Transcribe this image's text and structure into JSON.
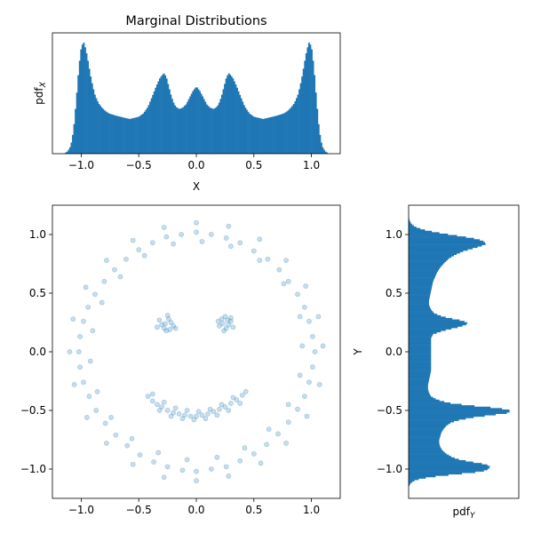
{
  "chart_data": [
    {
      "type": "histogram",
      "title": "Marginal Distributions",
      "xlabel": "X",
      "ylabel": "pdf",
      "ylabel_sub": "X",
      "xlim": [
        -1.25,
        1.25
      ],
      "ylim": [
        0,
        1.08
      ],
      "xticks": [
        -1.0,
        -0.5,
        0.0,
        0.5,
        1.0
      ],
      "xtick_labels": [
        "−1.0",
        "−0.5",
        "0.0",
        "0.5",
        "1.0"
      ],
      "yticks_hidden": true,
      "color": "#1f77b4",
      "x": [
        -1.15,
        -1.12,
        -1.1,
        -1.08,
        -1.06,
        -1.04,
        -1.02,
        -1.0,
        -0.98,
        -0.96,
        -0.94,
        -0.92,
        -0.9,
        -0.88,
        -0.85,
        -0.82,
        -0.79,
        -0.76,
        -0.73,
        -0.7,
        -0.66,
        -0.62,
        -0.58,
        -0.54,
        -0.5,
        -0.46,
        -0.42,
        -0.38,
        -0.35,
        -0.32,
        -0.3,
        -0.28,
        -0.26,
        -0.24,
        -0.22,
        -0.2,
        -0.18,
        -0.15,
        -0.12,
        -0.09,
        -0.06,
        -0.03,
        0.0,
        0.03,
        0.06,
        0.09,
        0.12,
        0.15,
        0.18,
        0.2,
        0.22,
        0.24,
        0.26,
        0.28,
        0.3,
        0.32,
        0.35,
        0.38,
        0.42,
        0.46,
        0.5,
        0.54,
        0.58,
        0.62,
        0.66,
        0.7,
        0.73,
        0.76,
        0.79,
        0.82,
        0.85,
        0.88,
        0.9,
        0.92,
        0.94,
        0.96,
        0.98,
        1.0,
        1.02,
        1.04,
        1.06,
        1.08,
        1.1,
        1.12,
        1.15
      ],
      "density": [
        0.0,
        0.02,
        0.05,
        0.12,
        0.28,
        0.52,
        0.78,
        0.95,
        1.0,
        0.93,
        0.82,
        0.7,
        0.6,
        0.52,
        0.45,
        0.41,
        0.38,
        0.36,
        0.35,
        0.34,
        0.33,
        0.32,
        0.31,
        0.32,
        0.33,
        0.36,
        0.42,
        0.52,
        0.6,
        0.67,
        0.7,
        0.72,
        0.68,
        0.6,
        0.52,
        0.46,
        0.42,
        0.4,
        0.41,
        0.44,
        0.5,
        0.56,
        0.6,
        0.56,
        0.5,
        0.44,
        0.41,
        0.4,
        0.42,
        0.46,
        0.52,
        0.6,
        0.68,
        0.72,
        0.7,
        0.67,
        0.6,
        0.52,
        0.42,
        0.36,
        0.33,
        0.32,
        0.31,
        0.32,
        0.33,
        0.34,
        0.35,
        0.36,
        0.38,
        0.41,
        0.45,
        0.52,
        0.6,
        0.7,
        0.82,
        0.93,
        1.0,
        0.95,
        0.78,
        0.52,
        0.28,
        0.12,
        0.05,
        0.02,
        0.0
      ]
    },
    {
      "type": "scatter",
      "xlim": [
        -1.25,
        1.25
      ],
      "ylim": [
        -1.25,
        1.25
      ],
      "xticks": [
        -1.0,
        -0.5,
        0.0,
        0.5,
        1.0
      ],
      "xtick_labels": [
        "−1.0",
        "−0.5",
        "0.0",
        "0.5",
        "1.0"
      ],
      "yticks": [
        -1.0,
        -0.5,
        0.0,
        0.5,
        1.0
      ],
      "ytick_labels": [
        "−1.0",
        "−0.5",
        "0.0",
        "0.5",
        "1.0"
      ],
      "color": "#1f77b4",
      "alpha": 0.25,
      "points": [
        [
          1.03,
          0.0
        ],
        [
          1.01,
          0.13
        ],
        [
          0.98,
          0.26
        ],
        [
          0.94,
          0.38
        ],
        [
          0.88,
          0.49
        ],
        [
          0.8,
          0.6
        ],
        [
          0.72,
          0.7
        ],
        [
          0.62,
          0.79
        ],
        [
          0.5,
          0.86
        ],
        [
          0.38,
          0.93
        ],
        [
          0.26,
          0.97
        ],
        [
          0.13,
          1.0
        ],
        [
          0.0,
          1.02
        ],
        [
          -0.13,
          1.0
        ],
        [
          -0.26,
          0.98
        ],
        [
          -0.38,
          0.93
        ],
        [
          -0.5,
          0.87
        ],
        [
          -0.61,
          0.79
        ],
        [
          -0.71,
          0.7
        ],
        [
          -0.8,
          0.6
        ],
        [
          -0.88,
          0.49
        ],
        [
          -0.94,
          0.38
        ],
        [
          -0.98,
          0.26
        ],
        [
          -1.01,
          0.13
        ],
        [
          -1.02,
          0.0
        ],
        [
          -1.01,
          -0.13
        ],
        [
          -0.98,
          -0.26
        ],
        [
          -0.93,
          -0.38
        ],
        [
          -0.87,
          -0.5
        ],
        [
          -0.79,
          -0.61
        ],
        [
          -0.7,
          -0.71
        ],
        [
          -0.6,
          -0.8
        ],
        [
          -0.49,
          -0.88
        ],
        [
          -0.37,
          -0.94
        ],
        [
          -0.25,
          -0.98
        ],
        [
          -0.12,
          -1.01
        ],
        [
          0.0,
          -1.02
        ],
        [
          0.13,
          -1.0
        ],
        [
          0.26,
          -0.98
        ],
        [
          0.38,
          -0.93
        ],
        [
          0.5,
          -0.87
        ],
        [
          0.61,
          -0.79
        ],
        [
          0.71,
          -0.7
        ],
        [
          0.8,
          -0.6
        ],
        [
          0.88,
          -0.49
        ],
        [
          0.94,
          -0.38
        ],
        [
          0.98,
          -0.26
        ],
        [
          1.01,
          -0.13
        ],
        [
          0.92,
          0.05
        ],
        [
          0.9,
          0.3
        ],
        [
          0.76,
          0.58
        ],
        [
          0.55,
          0.78
        ],
        [
          0.3,
          0.9
        ],
        [
          0.05,
          0.94
        ],
        [
          -0.2,
          0.92
        ],
        [
          -0.45,
          0.82
        ],
        [
          -0.66,
          0.64
        ],
        [
          -0.82,
          0.42
        ],
        [
          -0.9,
          0.18
        ],
        [
          -0.92,
          -0.08
        ],
        [
          -0.86,
          -0.34
        ],
        [
          -0.74,
          -0.56
        ],
        [
          -0.56,
          -0.74
        ],
        [
          -0.33,
          -0.86
        ],
        [
          -0.08,
          -0.92
        ],
        [
          0.18,
          -0.9
        ],
        [
          0.42,
          -0.82
        ],
        [
          0.63,
          -0.66
        ],
        [
          0.8,
          -0.45
        ],
        [
          0.9,
          -0.2
        ],
        [
          1.1,
          0.05
        ],
        [
          1.06,
          0.3
        ],
        [
          0.95,
          0.56
        ],
        [
          0.78,
          0.78
        ],
        [
          0.55,
          0.96
        ],
        [
          0.28,
          1.07
        ],
        [
          0.0,
          1.1
        ],
        [
          -0.28,
          1.06
        ],
        [
          -0.55,
          0.95
        ],
        [
          -0.78,
          0.78
        ],
        [
          -0.96,
          0.55
        ],
        [
          -1.07,
          0.28
        ],
        [
          -1.1,
          0.0
        ],
        [
          -1.06,
          -0.28
        ],
        [
          -0.95,
          -0.56
        ],
        [
          -0.78,
          -0.78
        ],
        [
          -0.55,
          -0.96
        ],
        [
          -0.28,
          -1.07
        ],
        [
          0.0,
          -1.1
        ],
        [
          0.28,
          -1.06
        ],
        [
          0.56,
          -0.95
        ],
        [
          0.78,
          -0.78
        ],
        [
          0.96,
          -0.55
        ],
        [
          1.07,
          -0.28
        ],
        [
          -0.32,
          0.27
        ],
        [
          -0.28,
          0.2
        ],
        [
          -0.24,
          0.28
        ],
        [
          -0.2,
          0.22
        ],
        [
          -0.26,
          0.18
        ],
        [
          -0.3,
          0.23
        ],
        [
          -0.22,
          0.25
        ],
        [
          -0.25,
          0.31
        ],
        [
          -0.34,
          0.21
        ],
        [
          -0.18,
          0.2
        ],
        [
          -0.27,
          0.24
        ],
        [
          -0.23,
          0.19
        ],
        [
          0.22,
          0.28
        ],
        [
          0.26,
          0.2
        ],
        [
          0.3,
          0.26
        ],
        [
          0.25,
          0.3
        ],
        [
          0.2,
          0.22
        ],
        [
          0.28,
          0.23
        ],
        [
          0.32,
          0.21
        ],
        [
          0.24,
          0.18
        ],
        [
          0.19,
          0.26
        ],
        [
          0.27,
          0.27
        ],
        [
          0.23,
          0.24
        ],
        [
          0.3,
          0.29
        ],
        [
          -0.42,
          -0.38
        ],
        [
          -0.38,
          -0.42
        ],
        [
          -0.34,
          -0.45
        ],
        [
          -0.3,
          -0.47
        ],
        [
          -0.25,
          -0.5
        ],
        [
          -0.2,
          -0.52
        ],
        [
          -0.15,
          -0.53
        ],
        [
          -0.1,
          -0.54
        ],
        [
          -0.05,
          -0.55
        ],
        [
          0.0,
          -0.55
        ],
        [
          0.05,
          -0.54
        ],
        [
          0.1,
          -0.53
        ],
        [
          0.15,
          -0.51
        ],
        [
          0.2,
          -0.49
        ],
        [
          0.25,
          -0.47
        ],
        [
          0.3,
          -0.44
        ],
        [
          0.35,
          -0.41
        ],
        [
          0.4,
          -0.37
        ],
        [
          0.43,
          -0.34
        ],
        [
          -0.38,
          -0.36
        ],
        [
          -0.28,
          -0.43
        ],
        [
          -0.18,
          -0.48
        ],
        [
          -0.08,
          -0.5
        ],
        [
          0.02,
          -0.51
        ],
        [
          0.12,
          -0.49
        ],
        [
          0.22,
          -0.45
        ],
        [
          0.32,
          -0.39
        ],
        [
          -0.32,
          -0.5
        ],
        [
          -0.22,
          -0.55
        ],
        [
          -0.12,
          -0.57
        ],
        [
          -0.02,
          -0.58
        ],
        [
          0.08,
          -0.57
        ],
        [
          0.18,
          -0.54
        ],
        [
          0.28,
          -0.5
        ],
        [
          0.38,
          -0.44
        ]
      ]
    },
    {
      "type": "histogram",
      "orientation": "horizontal",
      "xlabel": "pdf",
      "xlabel_sub": "Y",
      "ylabel": "Y",
      "xlim": [
        0,
        1.08
      ],
      "ylim": [
        -1.25,
        1.25
      ],
      "yticks": [
        -1.0,
        -0.5,
        0.0,
        0.5,
        1.0
      ],
      "ytick_labels": [
        "−1.0",
        "−0.5",
        "0.0",
        "0.5",
        "1.0"
      ],
      "xticks_hidden": true,
      "color": "#1f77b4",
      "y": [
        -1.15,
        -1.12,
        -1.1,
        -1.08,
        -1.06,
        -1.04,
        -1.02,
        -1.0,
        -0.98,
        -0.96,
        -0.94,
        -0.92,
        -0.9,
        -0.87,
        -0.84,
        -0.81,
        -0.78,
        -0.75,
        -0.72,
        -0.69,
        -0.66,
        -0.63,
        -0.6,
        -0.58,
        -0.56,
        -0.54,
        -0.52,
        -0.5,
        -0.48,
        -0.46,
        -0.44,
        -0.42,
        -0.4,
        -0.38,
        -0.35,
        -0.32,
        -0.28,
        -0.24,
        -0.2,
        -0.16,
        -0.12,
        -0.08,
        -0.04,
        0.0,
        0.04,
        0.08,
        0.12,
        0.15,
        0.17,
        0.19,
        0.21,
        0.23,
        0.25,
        0.27,
        0.29,
        0.31,
        0.33,
        0.36,
        0.4,
        0.44,
        0.48,
        0.52,
        0.56,
        0.6,
        0.64,
        0.68,
        0.72,
        0.76,
        0.8,
        0.83,
        0.86,
        0.88,
        0.9,
        0.92,
        0.94,
        0.96,
        0.98,
        1.0,
        1.02,
        1.04,
        1.06,
        1.08,
        1.1,
        1.12,
        1.15
      ],
      "density": [
        0.0,
        0.02,
        0.05,
        0.12,
        0.28,
        0.5,
        0.72,
        0.78,
        0.8,
        0.76,
        0.62,
        0.5,
        0.43,
        0.37,
        0.33,
        0.31,
        0.3,
        0.3,
        0.31,
        0.32,
        0.34,
        0.37,
        0.42,
        0.5,
        0.62,
        0.8,
        0.98,
        1.0,
        0.88,
        0.62,
        0.42,
        0.32,
        0.26,
        0.22,
        0.2,
        0.19,
        0.19,
        0.2,
        0.21,
        0.22,
        0.22,
        0.22,
        0.22,
        0.22,
        0.22,
        0.22,
        0.22,
        0.24,
        0.3,
        0.38,
        0.48,
        0.56,
        0.58,
        0.5,
        0.38,
        0.3,
        0.25,
        0.22,
        0.2,
        0.2,
        0.21,
        0.22,
        0.23,
        0.24,
        0.26,
        0.28,
        0.31,
        0.35,
        0.4,
        0.46,
        0.54,
        0.62,
        0.7,
        0.76,
        0.74,
        0.68,
        0.55,
        0.4,
        0.26,
        0.15,
        0.08,
        0.04,
        0.02,
        0.01,
        0.0
      ]
    }
  ]
}
